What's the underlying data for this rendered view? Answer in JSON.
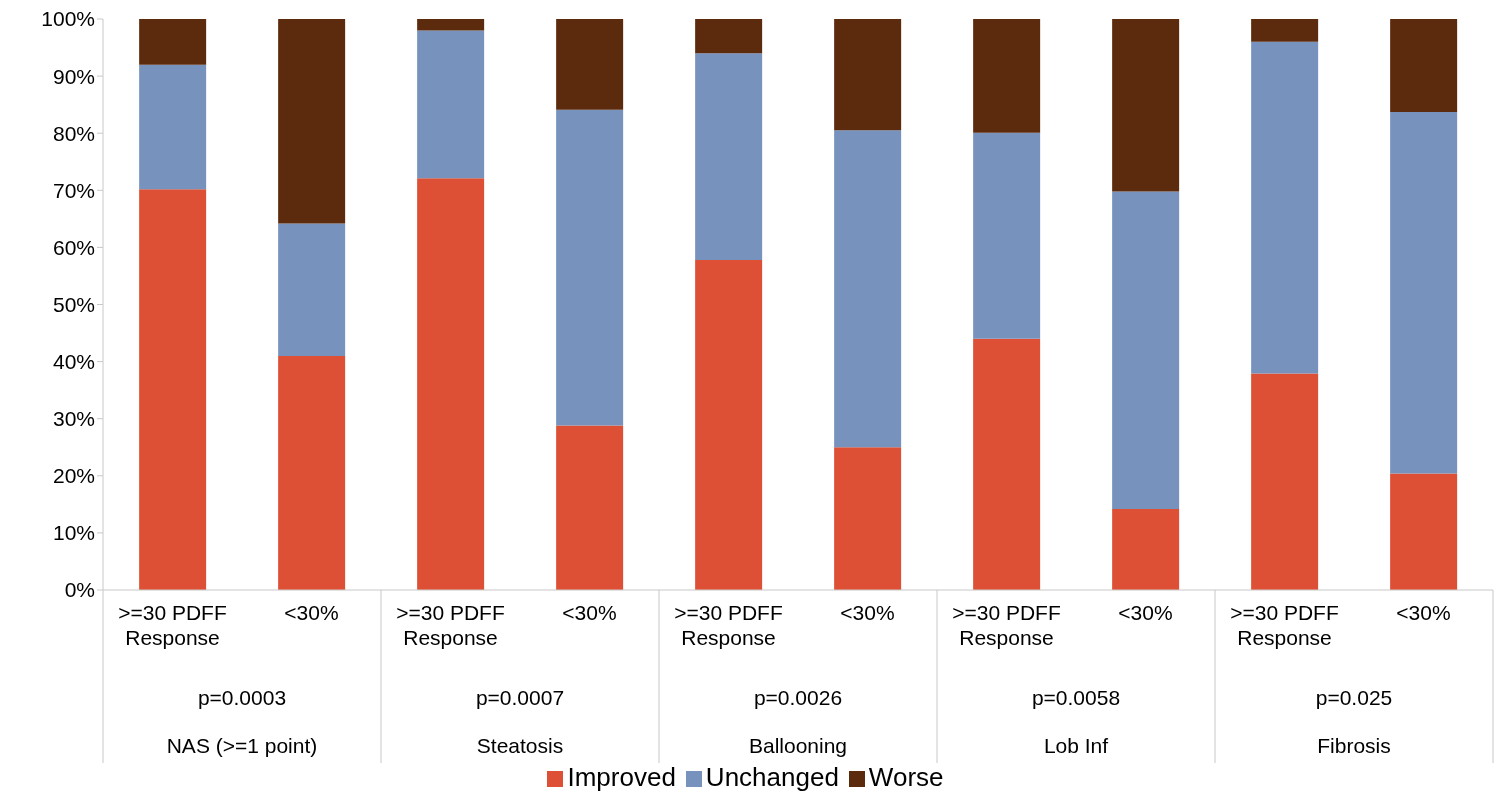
{
  "chart_data": {
    "type": "bar",
    "stacked": true,
    "categories": [
      ">=30 PDFF Response",
      "<30%",
      ">=30 PDFF Response",
      "<30%",
      ">=30 PDFF Response",
      "<30%",
      ">=30 PDFF Response",
      "<30%",
      ">=30 PDFF Response",
      "<30%"
    ],
    "series": [
      {
        "name": "Improved",
        "color": "#dd5035",
        "values": [
          70.2,
          41,
          72.1,
          28.8,
          57.8,
          25,
          44,
          14.2,
          37.9,
          20.4
        ]
      },
      {
        "name": "Unchanged",
        "color": "#7692bd",
        "values": [
          21.8,
          23.2,
          25.9,
          55.3,
          36.2,
          55.5,
          36.1,
          55.6,
          58.1,
          63.3
        ]
      },
      {
        "name": "Worse",
        "color": "#5c2a0c",
        "values": [
          8,
          35.8,
          2,
          15.9,
          6,
          19.5,
          19.9,
          30.2,
          4,
          16.3
        ]
      }
    ],
    "ylim": [
      0,
      100
    ],
    "yticks": [
      {
        "value": 0,
        "label": "0%"
      },
      {
        "value": 10,
        "label": "10%"
      },
      {
        "value": 20,
        "label": "20%"
      },
      {
        "value": 30,
        "label": "30%"
      },
      {
        "value": 40,
        "label": "40%"
      },
      {
        "value": 50,
        "label": "50%"
      },
      {
        "value": 60,
        "label": "60%"
      },
      {
        "value": 70,
        "label": "70%"
      },
      {
        "value": 80,
        "label": "80%"
      },
      {
        "value": 90,
        "label": "90%"
      },
      {
        "value": 100,
        "label": "100%"
      }
    ],
    "annotations": [
      "p=0.0003",
      "p=0.0007",
      "p=0.0026",
      "p=0.0058",
      "p=0.025",
      "NAS (>=1 point)",
      "Steatosis",
      "Ballooning",
      "Lob Inf",
      "Fibrosis"
    ],
    "legend": "bottom"
  }
}
